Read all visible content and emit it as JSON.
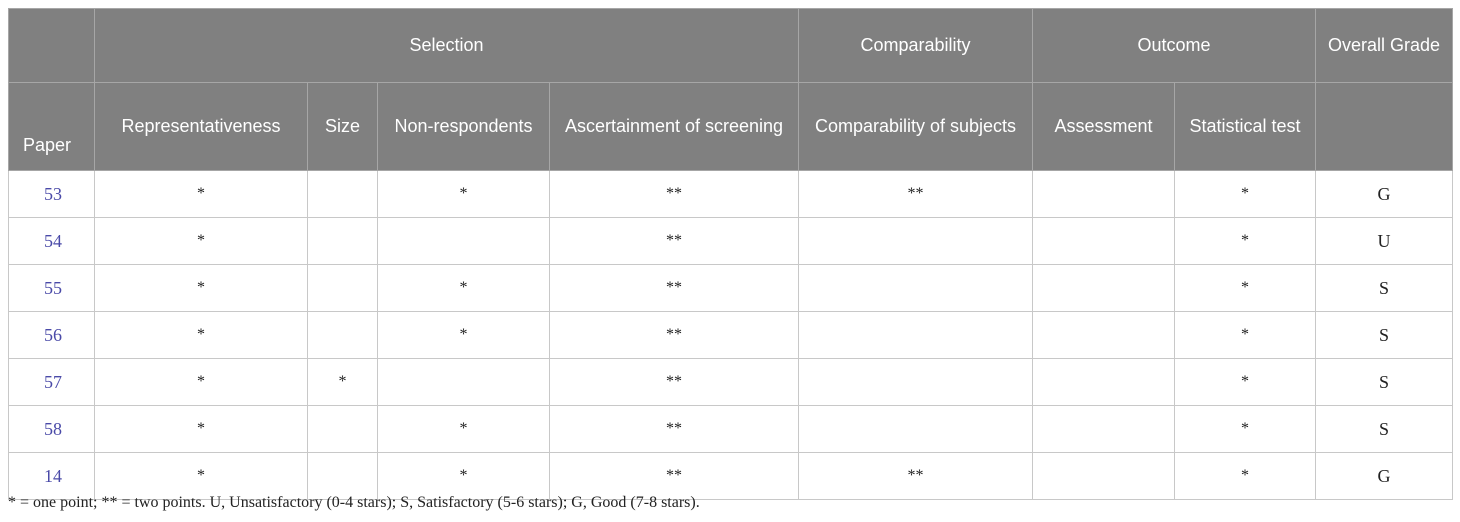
{
  "header": {
    "groups": {
      "selection": "Selection",
      "comparability": "Comparability",
      "outcome": "Outcome",
      "overall_grade": "Overall Grade"
    },
    "columns": {
      "paper": "Paper",
      "representativeness": "Representativeness",
      "size": "Size",
      "non_respondents": "Non-respondents",
      "ascertainment": "Ascertainment of screening",
      "comparability_subjects": "Comparability of subjects",
      "assessment": "Assessment",
      "statistical_test": "Statistical test"
    }
  },
  "rows": [
    {
      "paper": "53",
      "representativeness": "*",
      "size": "",
      "non_respondents": "*",
      "ascertainment": "**",
      "comparability": "**",
      "assessment": "",
      "statistical_test": "*",
      "grade": "G"
    },
    {
      "paper": "54",
      "representativeness": "*",
      "size": "",
      "non_respondents": "",
      "ascertainment": "**",
      "comparability": "",
      "assessment": "",
      "statistical_test": "*",
      "grade": "U"
    },
    {
      "paper": "55",
      "representativeness": "*",
      "size": "",
      "non_respondents": "*",
      "ascertainment": "**",
      "comparability": "",
      "assessment": "",
      "statistical_test": "*",
      "grade": "S"
    },
    {
      "paper": "56",
      "representativeness": "*",
      "size": "",
      "non_respondents": "*",
      "ascertainment": "**",
      "comparability": "",
      "assessment": "",
      "statistical_test": "*",
      "grade": "S"
    },
    {
      "paper": "57",
      "representativeness": "*",
      "size": "*",
      "non_respondents": "",
      "ascertainment": "**",
      "comparability": "",
      "assessment": "",
      "statistical_test": "*",
      "grade": "S"
    },
    {
      "paper": "58",
      "representativeness": "*",
      "size": "",
      "non_respondents": "*",
      "ascertainment": "**",
      "comparability": "",
      "assessment": "",
      "statistical_test": "*",
      "grade": "S"
    },
    {
      "paper": "14",
      "representativeness": "*",
      "size": "",
      "non_respondents": "*",
      "ascertainment": "**",
      "comparability": "**",
      "assessment": "",
      "statistical_test": "*",
      "grade": "G"
    }
  ],
  "footnote": "* = one point; ** = two points. U, Unsatisfactory (0-4 stars); S, Satisfactory (5-6 stars); G, Good (7-8 stars).",
  "colors": {
    "header_bg": "#808080",
    "header_text": "#ffffff",
    "paper_link": "#4a4aa8"
  }
}
